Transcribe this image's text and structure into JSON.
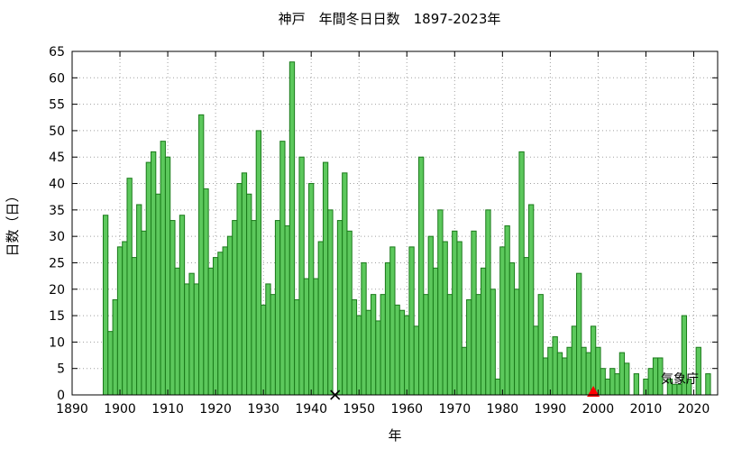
{
  "chart_data": {
    "type": "bar",
    "title": "神戸　年間冬日日数　1897-2023年",
    "xlabel": "年",
    "ylabel": "日数（日）",
    "xlim": [
      1890,
      2025
    ],
    "ylim": [
      0,
      65
    ],
    "x_ticks": [
      1890,
      1900,
      1910,
      1920,
      1930,
      1940,
      1950,
      1960,
      1970,
      1980,
      1990,
      2000,
      2010,
      2020
    ],
    "y_ticks": [
      0,
      5,
      10,
      15,
      20,
      25,
      30,
      35,
      40,
      45,
      50,
      55,
      60,
      65
    ],
    "grid": true,
    "colors": {
      "bar_fill": "#5cc85c",
      "bar_stroke": "#1a7a1a",
      "x_marker": "#000000",
      "triangle_marker": "#ff0000"
    },
    "series": [
      {
        "x": [
          1897,
          1898,
          1899,
          1900,
          1901,
          1902,
          1903,
          1904,
          1905,
          1906,
          1907,
          1908,
          1909,
          1910,
          1911,
          1912,
          1913,
          1914,
          1915,
          1916,
          1917,
          1918,
          1919,
          1920,
          1921,
          1922,
          1923,
          1924,
          1925,
          1926,
          1927,
          1928,
          1929,
          1930,
          1931,
          1932,
          1933,
          1934,
          1935,
          1936,
          1937,
          1938,
          1939,
          1940,
          1941,
          1942,
          1943,
          1944,
          1945,
          1946,
          1947,
          1948,
          1949,
          1950,
          1951,
          1952,
          1953,
          1954,
          1955,
          1956,
          1957,
          1958,
          1959,
          1960,
          1961,
          1962,
          1963,
          1964,
          1965,
          1966,
          1967,
          1968,
          1969,
          1970,
          1971,
          1972,
          1973,
          1974,
          1975,
          1976,
          1977,
          1978,
          1979,
          1980,
          1981,
          1982,
          1983,
          1984,
          1985,
          1986,
          1987,
          1988,
          1989,
          1990,
          1991,
          1992,
          1993,
          1994,
          1995,
          1996,
          1997,
          1998,
          1999,
          2000,
          2001,
          2002,
          2003,
          2004,
          2005,
          2006,
          2007,
          2008,
          2009,
          2010,
          2011,
          2012,
          2013,
          2014,
          2015,
          2016,
          2017,
          2018,
          2019,
          2020,
          2021,
          2022,
          2023
        ],
        "values": [
          34,
          12,
          18,
          28,
          29,
          41,
          26,
          36,
          31,
          44,
          46,
          38,
          48,
          45,
          33,
          24,
          34,
          21,
          23,
          21,
          53,
          39,
          24,
          26,
          27,
          28,
          30,
          33,
          40,
          42,
          38,
          33,
          50,
          17,
          21,
          19,
          33,
          48,
          32,
          63,
          18,
          45,
          22,
          40,
          22,
          29,
          44,
          35,
          0,
          33,
          42,
          31,
          18,
          15,
          25,
          16,
          19,
          14,
          19,
          25,
          28,
          17,
          16,
          15,
          28,
          13,
          45,
          19,
          30,
          24,
          35,
          29,
          19,
          31,
          29,
          9,
          18,
          31,
          19,
          24,
          35,
          20,
          3,
          28,
          32,
          25,
          20,
          46,
          26,
          36,
          13,
          19,
          7,
          9,
          11,
          8,
          7,
          9,
          13,
          23,
          9,
          8,
          13,
          9,
          5,
          3,
          5,
          4,
          8,
          6,
          0,
          4,
          0,
          3,
          5,
          7,
          7,
          0,
          3,
          2,
          2,
          15,
          3,
          0,
          9,
          0,
          4
        ]
      }
    ],
    "markers": [
      {
        "shape": "x",
        "year": 1945,
        "value": 0
      },
      {
        "shape": "triangle",
        "year": 1999,
        "value": 0
      }
    ],
    "credit": "気象庁"
  }
}
